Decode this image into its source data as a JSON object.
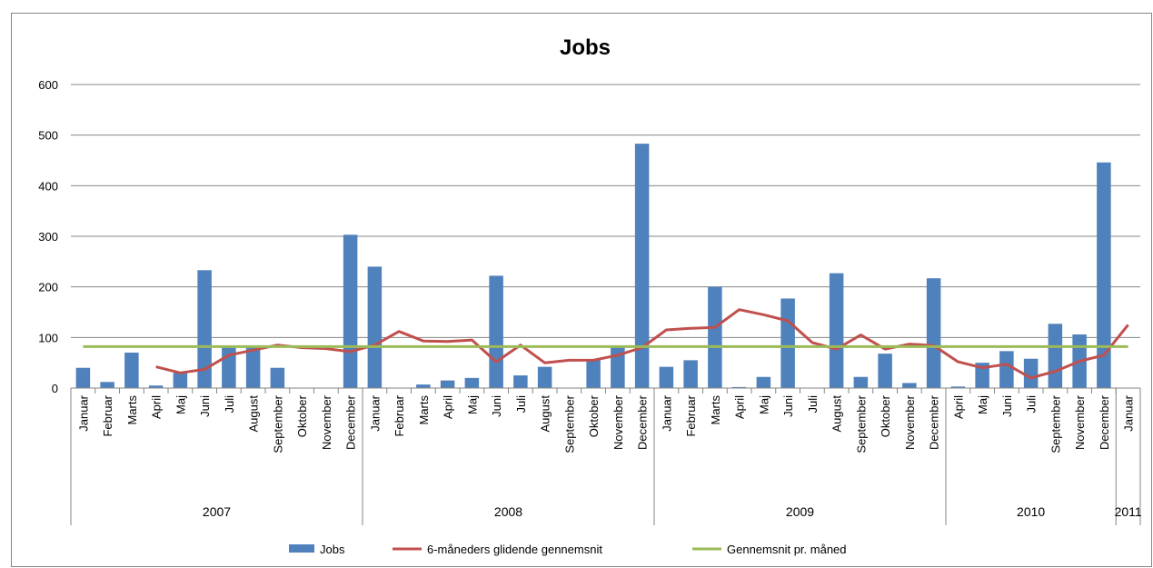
{
  "chart_data": {
    "type": "bar",
    "title": "Jobs",
    "ylim": [
      0,
      600
    ],
    "yticks": [
      "0",
      "100",
      "200",
      "300",
      "400",
      "500",
      "600"
    ],
    "grid": true,
    "legend_position": "bottom",
    "categories": [
      "Januar",
      "Februar",
      "Marts",
      "April",
      "Maj",
      "Juni",
      "Juli",
      "August",
      "September",
      "Oktober",
      "November",
      "December",
      "Januar",
      "Februar",
      "Marts",
      "April",
      "Maj",
      "Juni",
      "Juli",
      "August",
      "September",
      "Oktober",
      "November",
      "December",
      "Januar",
      "Februar",
      "Marts",
      "April",
      "Maj",
      "Juni",
      "Juli",
      "August",
      "September",
      "Oktober",
      "November",
      "December",
      "April",
      "Maj",
      "Juni",
      "Juli",
      "September",
      "November",
      "December",
      "Januar"
    ],
    "year_groups": [
      {
        "label": "2007",
        "count": 12
      },
      {
        "label": "2008",
        "count": 12
      },
      {
        "label": "2009",
        "count": 12
      },
      {
        "label": "2010",
        "count": 7
      },
      {
        "label": "2011",
        "count": 1
      }
    ],
    "series": [
      {
        "name": "Jobs",
        "kind": "bar",
        "color": "#4f81bd",
        "values": [
          40,
          12,
          70,
          5,
          30,
          233,
          80,
          80,
          40,
          0,
          0,
          303,
          240,
          0,
          7,
          15,
          20,
          222,
          25,
          42,
          0,
          55,
          80,
          483,
          42,
          55,
          200,
          2,
          22,
          177,
          0,
          227,
          22,
          68,
          10,
          217,
          3,
          50,
          73,
          58,
          127,
          106,
          446,
          0
        ]
      },
      {
        "name": "6-måneders glidende gennemsnit",
        "kind": "line",
        "color": "#c0504d",
        "values": [
          null,
          null,
          null,
          42,
          30,
          37,
          65,
          75,
          85,
          80,
          78,
          72,
          85,
          112,
          93,
          92,
          95,
          52,
          85,
          50,
          55,
          55,
          65,
          80,
          115,
          118,
          120,
          155,
          145,
          133,
          90,
          77,
          105,
          77,
          87,
          84,
          52,
          40,
          47,
          20,
          33,
          53,
          65,
          125
        ]
      },
      {
        "name": "Gennemsnit pr. måned",
        "kind": "line",
        "color": "#9bbb59",
        "values": [
          82,
          82,
          82,
          82,
          82,
          82,
          82,
          82,
          82,
          82,
          82,
          82,
          82,
          82,
          82,
          82,
          82,
          82,
          82,
          82,
          82,
          82,
          82,
          82,
          82,
          82,
          82,
          82,
          82,
          82,
          82,
          82,
          82,
          82,
          82,
          82,
          82,
          82,
          82,
          82,
          82,
          82,
          82,
          82
        ]
      }
    ]
  }
}
